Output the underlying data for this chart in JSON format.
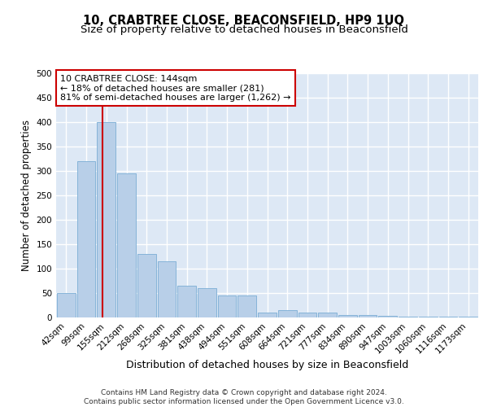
{
  "title": "10, CRABTREE CLOSE, BEACONSFIELD, HP9 1UQ",
  "subtitle": "Size of property relative to detached houses in Beaconsfield",
  "xlabel": "Distribution of detached houses by size in Beaconsfield",
  "ylabel": "Number of detached properties",
  "footer_line1": "Contains HM Land Registry data © Crown copyright and database right 2024.",
  "footer_line2": "Contains public sector information licensed under the Open Government Licence v3.0.",
  "categories": [
    "42sqm",
    "99sqm",
    "155sqm",
    "212sqm",
    "268sqm",
    "325sqm",
    "381sqm",
    "438sqm",
    "494sqm",
    "551sqm",
    "608sqm",
    "664sqm",
    "721sqm",
    "777sqm",
    "834sqm",
    "890sqm",
    "947sqm",
    "1003sqm",
    "1060sqm",
    "1116sqm",
    "1173sqm"
  ],
  "values": [
    50,
    320,
    400,
    295,
    130,
    115,
    65,
    60,
    45,
    45,
    10,
    15,
    10,
    10,
    5,
    5,
    3,
    2,
    2,
    2,
    2
  ],
  "bar_color": "#b8cfe8",
  "bar_edge_color": "#7aadd4",
  "bg_color": "#dde8f5",
  "grid_color": "#ffffff",
  "annotation_text": "10 CRABTREE CLOSE: 144sqm\n← 18% of detached houses are smaller (281)\n81% of semi-detached houses are larger (1,262) →",
  "vline_x_index": 1.82,
  "vline_color": "#cc0000",
  "annotation_box_color": "#cc0000",
  "ylim": [
    0,
    500
  ],
  "yticks": [
    0,
    50,
    100,
    150,
    200,
    250,
    300,
    350,
    400,
    450,
    500
  ],
  "title_fontsize": 10.5,
  "subtitle_fontsize": 9.5,
  "xlabel_fontsize": 9,
  "ylabel_fontsize": 8.5,
  "tick_fontsize": 7.5,
  "annotation_fontsize": 8.0,
  "footer_fontsize": 6.5
}
